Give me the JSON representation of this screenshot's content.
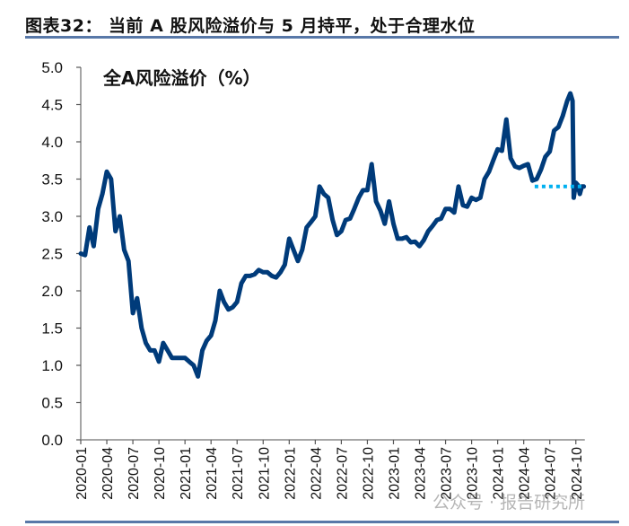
{
  "figure_title": "图表32：  当前 A 股风险溢价与 5 月持平，处于合理水位",
  "watermark": "公众号 · 报告研究所",
  "colors": {
    "line": "#003B7A",
    "reference": "#00B0F0",
    "rule": "#5878A8"
  },
  "chart_data": {
    "type": "line",
    "title": "全A风险溢价（%）",
    "xlabel": "",
    "ylabel": "",
    "ylim": [
      0,
      5
    ],
    "yticks": [
      "0.0",
      "0.5",
      "1.0",
      "1.5",
      "2.0",
      "2.5",
      "3.0",
      "3.5",
      "4.0",
      "4.5",
      "5.0"
    ],
    "xticks": [
      "2020-01",
      "2020-04",
      "2020-07",
      "2020-10",
      "2021-01",
      "2021-04",
      "2021-07",
      "2021-10",
      "2022-01",
      "2022-04",
      "2022-07",
      "2022-10",
      "2023-01",
      "2023-04",
      "2023-07",
      "2023-10",
      "2024-01",
      "2024-04",
      "2024-07",
      "2024-10"
    ],
    "grid": false,
    "series": [
      {
        "x": [
          "2020-01-01",
          "2020-01-16",
          "2020-02-01",
          "2020-02-16",
          "2020-03-01",
          "2020-03-16",
          "2020-04-01",
          "2020-04-16",
          "2020-05-01",
          "2020-05-16",
          "2020-06-01",
          "2020-06-16",
          "2020-07-01",
          "2020-07-16",
          "2020-08-01",
          "2020-08-16",
          "2020-09-01",
          "2020-09-16",
          "2020-10-01",
          "2020-10-16",
          "2020-11-01",
          "2020-11-16",
          "2020-12-01",
          "2020-12-16",
          "2021-01-01",
          "2021-01-16",
          "2021-02-01",
          "2021-02-16",
          "2021-03-01",
          "2021-03-16",
          "2021-04-01",
          "2021-04-16",
          "2021-05-01",
          "2021-05-16",
          "2021-06-01",
          "2021-06-16",
          "2021-07-01",
          "2021-07-16",
          "2021-08-01",
          "2021-08-16",
          "2021-09-01",
          "2021-09-16",
          "2021-10-01",
          "2021-10-16",
          "2021-11-01",
          "2021-11-16",
          "2021-12-01",
          "2021-12-16",
          "2022-01-01",
          "2022-01-16",
          "2022-02-01",
          "2022-02-16",
          "2022-03-01",
          "2022-03-16",
          "2022-04-01",
          "2022-04-16",
          "2022-05-01",
          "2022-05-16",
          "2022-06-01",
          "2022-06-16",
          "2022-07-01",
          "2022-07-16",
          "2022-08-01",
          "2022-08-16",
          "2022-09-01",
          "2022-09-16",
          "2022-10-01",
          "2022-10-16",
          "2022-11-01",
          "2022-11-16",
          "2022-12-01",
          "2022-12-16",
          "2023-01-01",
          "2023-01-16",
          "2023-02-01",
          "2023-02-16",
          "2023-03-01",
          "2023-03-16",
          "2023-04-01",
          "2023-04-16",
          "2023-05-01",
          "2023-05-16",
          "2023-06-01",
          "2023-06-16",
          "2023-07-01",
          "2023-07-16",
          "2023-08-01",
          "2023-08-16",
          "2023-09-01",
          "2023-09-16",
          "2023-10-01",
          "2023-10-16",
          "2023-11-01",
          "2023-11-16",
          "2023-12-01",
          "2023-12-16",
          "2024-01-01",
          "2024-01-16",
          "2024-02-01",
          "2024-02-16",
          "2024-03-01",
          "2024-03-16",
          "2024-04-01",
          "2024-04-16",
          "2024-05-01",
          "2024-05-16",
          "2024-06-01",
          "2024-06-16",
          "2024-07-01",
          "2024-07-16",
          "2024-08-01",
          "2024-08-16",
          "2024-09-01",
          "2024-09-12",
          "2024-09-20",
          "2024-09-24",
          "2024-10-01",
          "2024-10-08",
          "2024-10-15",
          "2024-10-22",
          "2024-10-29"
        ],
        "values": [
          2.5,
          2.48,
          2.85,
          2.6,
          3.1,
          3.3,
          3.6,
          3.5,
          2.8,
          3.0,
          2.55,
          2.4,
          1.7,
          1.9,
          1.5,
          1.3,
          1.2,
          1.2,
          1.05,
          1.3,
          1.2,
          1.1,
          1.1,
          1.1,
          1.1,
          1.05,
          1.0,
          0.85,
          1.2,
          1.33,
          1.4,
          1.6,
          2.0,
          1.85,
          1.75,
          1.78,
          1.85,
          2.1,
          2.2,
          2.2,
          2.22,
          2.28,
          2.25,
          2.25,
          2.2,
          2.18,
          2.25,
          2.35,
          2.7,
          2.55,
          2.4,
          2.55,
          2.85,
          2.92,
          3.0,
          3.4,
          3.3,
          3.25,
          2.95,
          2.75,
          2.8,
          2.95,
          2.97,
          3.1,
          3.25,
          3.35,
          3.35,
          3.7,
          3.2,
          3.08,
          2.9,
          3.2,
          2.9,
          2.7,
          2.7,
          2.72,
          2.65,
          2.66,
          2.6,
          2.68,
          2.8,
          2.87,
          2.95,
          2.97,
          3.1,
          3.1,
          3.05,
          3.4,
          3.15,
          3.13,
          3.25,
          3.22,
          3.25,
          3.5,
          3.6,
          3.75,
          3.9,
          3.88,
          4.3,
          3.78,
          3.67,
          3.65,
          3.68,
          3.7,
          3.48,
          3.5,
          3.63,
          3.8,
          3.87,
          4.15,
          4.2,
          4.35,
          4.55,
          4.65,
          4.55,
          3.25,
          3.45,
          3.42,
          3.3,
          3.4,
          3.4
        ]
      }
    ],
    "reference_line": {
      "style": "dotted",
      "value": 3.4,
      "x_start": "2024-05-09",
      "x_end": "2024-10-29"
    }
  }
}
